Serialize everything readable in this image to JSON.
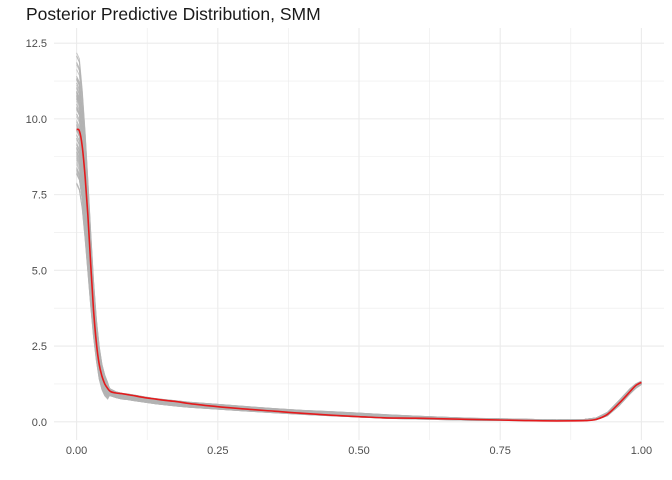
{
  "chart_data": {
    "type": "line",
    "title": "Posterior Predictive Distribution, SMM",
    "xlabel": "",
    "ylabel": "",
    "xlim": [
      -0.04,
      1.04
    ],
    "ylim": [
      -0.6,
      13.0
    ],
    "x_ticks": [
      0.0,
      0.25,
      0.5,
      0.75,
      1.0
    ],
    "x_tick_labels": [
      "0.00",
      "0.25",
      "0.50",
      "0.75",
      "1.00"
    ],
    "y_ticks": [
      0.0,
      2.5,
      5.0,
      7.5,
      10.0,
      12.5
    ],
    "y_tick_labels": [
      "0.0",
      "2.5",
      "5.0",
      "7.5",
      "10.0",
      "12.5"
    ],
    "grid": true,
    "legend": "none",
    "colors": {
      "observed": "#e41a1c",
      "replicates": "#b3b3b3",
      "grid": "#ebebeb"
    },
    "series": [
      {
        "role": "observed",
        "x": [
          0.0,
          0.005,
          0.01,
          0.015,
          0.02,
          0.025,
          0.03,
          0.035,
          0.04,
          0.045,
          0.05,
          0.055,
          0.06,
          0.07,
          0.08,
          0.09,
          0.1,
          0.12,
          0.14,
          0.16,
          0.18,
          0.2,
          0.25,
          0.3,
          0.35,
          0.4,
          0.45,
          0.5,
          0.55,
          0.6,
          0.65,
          0.7,
          0.75,
          0.8,
          0.85,
          0.9,
          0.92,
          0.94,
          0.96,
          0.98,
          0.99,
          1.0
        ],
        "y": [
          9.65,
          9.6,
          9.1,
          8.1,
          6.8,
          5.2,
          3.7,
          2.6,
          1.9,
          1.5,
          1.25,
          1.1,
          1.0,
          0.95,
          0.93,
          0.9,
          0.87,
          0.8,
          0.75,
          0.7,
          0.66,
          0.6,
          0.5,
          0.42,
          0.35,
          0.28,
          0.22,
          0.17,
          0.13,
          0.12,
          0.1,
          0.08,
          0.06,
          0.04,
          0.03,
          0.04,
          0.08,
          0.25,
          0.6,
          1.0,
          1.2,
          1.3
        ]
      }
    ],
    "replicates": {
      "count": 100,
      "peak_at_zero_range": [
        7.8,
        12.2
      ],
      "band_low": [
        7.8,
        7.6,
        7.0,
        6.0,
        4.9,
        3.8,
        2.8,
        2.0,
        1.4,
        1.05,
        0.85,
        0.75,
        0.7,
        0.66,
        0.62,
        0.6,
        0.57,
        0.52,
        0.47,
        0.43,
        0.39,
        0.36,
        0.3,
        0.25,
        0.2,
        0.15,
        0.1,
        0.06,
        0.03,
        0.02,
        0.01,
        0.0,
        0.0,
        0.0,
        0.0,
        0.0,
        0.02,
        0.12,
        0.4,
        0.8,
        1.0,
        1.15
      ],
      "band_high": [
        12.2,
        12.0,
        11.0,
        9.6,
        8.0,
        6.3,
        4.7,
        3.4,
        2.5,
        1.9,
        1.55,
        1.3,
        1.15,
        1.05,
        1.0,
        0.98,
        0.95,
        0.88,
        0.82,
        0.78,
        0.74,
        0.7,
        0.63,
        0.55,
        0.48,
        0.42,
        0.38,
        0.33,
        0.27,
        0.22,
        0.18,
        0.14,
        0.12,
        0.1,
        0.08,
        0.1,
        0.15,
        0.35,
        0.75,
        1.15,
        1.3,
        1.38
      ]
    }
  }
}
